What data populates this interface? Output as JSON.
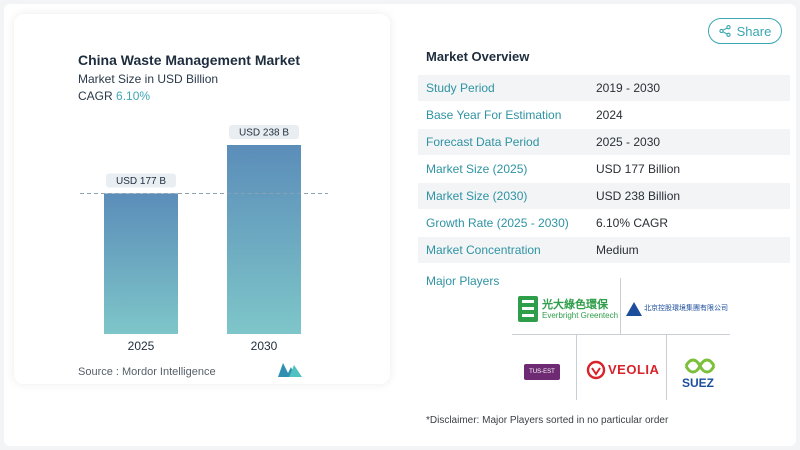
{
  "chart": {
    "title": "China Waste Management Market",
    "subtitle": "Market Size in USD Billion",
    "cagr_label": "CAGR",
    "cagr_value": "6.10%",
    "source": "Source :  Mordor Intelligence"
  },
  "chart_data": {
    "type": "bar",
    "categories": [
      "2025",
      "2030"
    ],
    "values": [
      177,
      238
    ],
    "data_labels": [
      "USD 177 B",
      "USD 238 B"
    ],
    "title": "China Waste Management Market",
    "subtitle": "Market Size in USD Billion",
    "ylim": [
      0,
      238
    ],
    "grid": false,
    "reference_line": "dashed line at 2025 value"
  },
  "share": {
    "label": "Share",
    "icon": "share-icon"
  },
  "overview": {
    "title": "Market Overview",
    "rows": [
      {
        "label": "Study Period",
        "value": "2019 - 2030"
      },
      {
        "label": "Base Year For Estimation",
        "value": "2024"
      },
      {
        "label": "Forecast Data Period",
        "value": "2025 - 2030"
      },
      {
        "label": "Market Size (2025)",
        "value": "USD 177 Billion"
      },
      {
        "label": "Market Size (2030)",
        "value": "USD 238 Billion"
      },
      {
        "label": "Growth Rate (2025 - 2030)",
        "value": "6.10% CAGR"
      },
      {
        "label": "Market Concentration",
        "value": "Medium"
      }
    ]
  },
  "players": {
    "title": "Major Players",
    "logos": {
      "everbright_cn": "光大綠色環保",
      "everbright_en": "Everbright Greentech",
      "beijing_cn": "北京控股環境集團有限公司",
      "tus": "TUS-EST",
      "veolia": "VEOLIA",
      "suez": "SUEZ"
    },
    "disclaimer": "*Disclaimer: Major Players sorted in no particular order"
  },
  "colors": {
    "accent": "#3aa7b1",
    "bar_top": "#5b8db9",
    "bar_bottom": "#7ec6c9",
    "veolia_red": "#d8232a",
    "suez_green": "#7bbf3a",
    "tus_purple": "#6e2a73"
  }
}
